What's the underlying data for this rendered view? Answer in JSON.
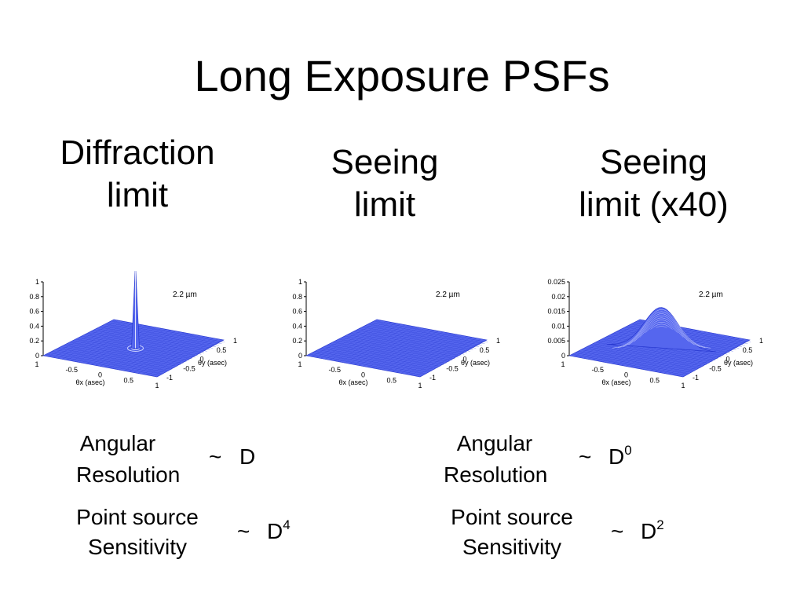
{
  "slide": {
    "title": "Long Exposure PSFs",
    "columns": [
      {
        "heading_line1": "Diffraction",
        "heading_line2": "limit"
      },
      {
        "heading_line1": "Seeing",
        "heading_line2": "limit"
      },
      {
        "heading_line1": "Seeing",
        "heading_line2": "limit (x40)"
      }
    ]
  },
  "plots": [
    {
      "label": "2.2 µm",
      "z_ticks": [
        "1",
        "0.8",
        "0.6",
        "0.4",
        "0.2",
        "0"
      ],
      "x_ticks": [
        "1",
        "-0.5",
        "0",
        "0.5",
        "1"
      ],
      "y_ticks": [
        "1",
        "0.5",
        "0",
        "-0.5",
        "-1"
      ],
      "x_label": "θx (asec)",
      "y_label": "θy (asec)",
      "shape": "narrow-peak"
    },
    {
      "label": "2.2 µm",
      "z_ticks": [
        "1",
        "0.8",
        "0.6",
        "0.4",
        "0.2",
        "0"
      ],
      "x_ticks": [
        "1",
        "-0.5",
        "0",
        "0.5",
        "1"
      ],
      "y_ticks": [
        "1",
        "0.5",
        "0",
        "-0.5",
        "-1"
      ],
      "x_label": "θx (asec)",
      "y_label": "θy (asec)",
      "shape": "flat"
    },
    {
      "label": "2.2 µm",
      "z_ticks": [
        "0.025",
        "0.02",
        "0.015",
        "0.01",
        "0.005",
        "0"
      ],
      "x_ticks": [
        "1",
        "-0.5",
        "0",
        "0.5",
        "1"
      ],
      "y_ticks": [
        "1",
        "0.5",
        "0",
        "-0.5",
        "-1"
      ],
      "x_label": "θx (asec)",
      "y_label": "θy (asec)",
      "shape": "broad-gaussian"
    }
  ],
  "left_scaling": {
    "angular_line1": "Angular",
    "angular_line2": "Resolution",
    "angular_tilde": "~",
    "angular_base": "D",
    "angular_exp": "",
    "point_line1": "Point source",
    "point_line2": "Sensitivity",
    "point_tilde": "~",
    "point_base": "D",
    "point_exp": "4"
  },
  "right_scaling": {
    "angular_line1": "Angular",
    "angular_line2": "Resolution",
    "angular_tilde": "~",
    "angular_base": "D",
    "angular_exp": "0",
    "point_line1": "Point source",
    "point_line2": "Sensitivity",
    "point_tilde": "~",
    "point_base": "D",
    "point_exp": "2"
  },
  "colors": {
    "surface_fill": "#5566ee",
    "surface_line": "#2233cc",
    "axis": "#000000"
  }
}
